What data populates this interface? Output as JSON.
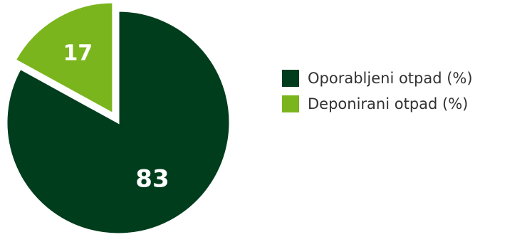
{
  "chart_data": {
    "type": "pie",
    "slices": [
      {
        "label": "Oporabljeni otpad (%)",
        "value": 83,
        "color": "#003d1c"
      },
      {
        "label": "Deponirani otpad (%)",
        "value": 17,
        "color": "#7ab51d"
      }
    ],
    "exploded_slice": "Deponirani otpad (%)",
    "legend_position": "right",
    "data_labels": [
      "83",
      "17"
    ]
  }
}
